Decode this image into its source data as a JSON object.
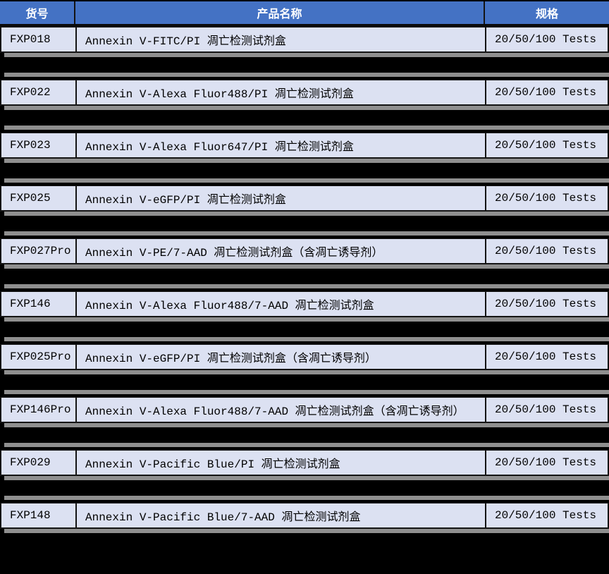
{
  "colors": {
    "header-bg": "#4472c4",
    "header-text": "#ffffff",
    "row-bg": "#dce1f2",
    "row-text": "#000000",
    "border": "#141414",
    "shadow": "#8f8f8f",
    "page-bg": "#000000"
  },
  "table": {
    "columns": [
      {
        "key": "code",
        "label": "货号"
      },
      {
        "key": "name",
        "label": "产品名称"
      },
      {
        "key": "spec",
        "label": "规格"
      }
    ],
    "rows": [
      {
        "code": "FXP018",
        "name": "Annexin V-FITC/PI 凋亡检测试剂盒",
        "spec": "20/50/100 Tests"
      },
      {
        "code": "FXP022",
        "name": "Annexin V-Alexa Fluor488/PI 凋亡检测试剂盒",
        "spec": "20/50/100 Tests"
      },
      {
        "code": "FXP023",
        "name": "Annexin V-Alexa Fluor647/PI 凋亡检测试剂盒",
        "spec": "20/50/100 Tests"
      },
      {
        "code": "FXP025",
        "name": "Annexin V-eGFP/PI 凋亡检测试剂盒",
        "spec": "20/50/100 Tests"
      },
      {
        "code": "FXP027Pro",
        "name": "Annexin V-PE/7-AAD 凋亡检测试剂盒（含凋亡诱导剂）",
        "spec": "20/50/100 Tests"
      },
      {
        "code": "FXP146",
        "name": "Annexin V-Alexa Fluor488/7-AAD 凋亡检测试剂盒",
        "spec": "20/50/100 Tests"
      },
      {
        "code": "FXP025Pro",
        "name": "Annexin V-eGFP/PI 凋亡检测试剂盒（含凋亡诱导剂）",
        "spec": "20/50/100 Tests"
      },
      {
        "code": "FXP146Pro",
        "name": "Annexin V-Alexa Fluor488/7-AAD 凋亡检测试剂盒（含凋亡诱导剂）",
        "spec": "20/50/100 Tests"
      },
      {
        "code": "FXP029",
        "name": "Annexin V-Pacific Blue/PI 凋亡检测试剂盒",
        "spec": "20/50/100 Tests"
      },
      {
        "code": "FXP148",
        "name": "Annexin V-Pacific Blue/7-AAD 凋亡检测试剂盒",
        "spec": "20/50/100 Tests"
      }
    ]
  }
}
